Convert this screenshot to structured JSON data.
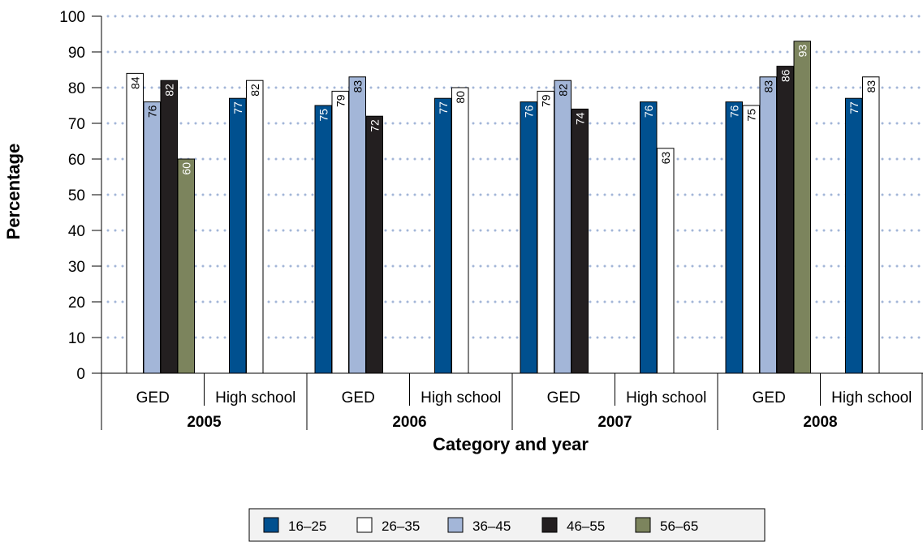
{
  "chart_data": {
    "type": "bar",
    "title": "",
    "xlabel": "Category and year",
    "ylabel": "Percentage",
    "ylim": [
      0,
      100
    ],
    "yticks": [
      "0",
      "10",
      "20",
      "30",
      "40",
      "50",
      "60",
      "70",
      "80",
      "90",
      "100"
    ],
    "grid": "horizontal dotted",
    "legend_position": "bottom",
    "groups": [
      {
        "year": "2005",
        "categories": [
          "GED",
          "High school"
        ]
      },
      {
        "year": "2006",
        "categories": [
          "GED",
          "High school"
        ]
      },
      {
        "year": "2007",
        "categories": [
          "GED",
          "High school"
        ]
      },
      {
        "year": "2008",
        "categories": [
          "GED",
          "High school"
        ]
      }
    ],
    "categories": [
      "GED",
      "High school",
      "GED",
      "High school",
      "GED",
      "High school",
      "GED",
      "High school"
    ],
    "series": [
      {
        "name": "16–25",
        "color": "#00508f",
        "label_color": "#ffffff",
        "values": [
          null,
          77,
          75,
          77,
          76,
          76,
          76,
          77
        ]
      },
      {
        "name": "26–35",
        "color": "#ffffff",
        "label_color": "#000000",
        "values": [
          84,
          82,
          79,
          80,
          79,
          63,
          75,
          83
        ]
      },
      {
        "name": "36–45",
        "color": "#a3b6d8",
        "label_color": "#000000",
        "values": [
          76,
          null,
          83,
          null,
          82,
          null,
          83,
          null
        ]
      },
      {
        "name": "46–55",
        "color": "#231f20",
        "label_color": "#ffffff",
        "values": [
          82,
          null,
          72,
          null,
          74,
          null,
          86,
          null
        ]
      },
      {
        "name": "56–65",
        "color": "#7c845d",
        "label_color": "#ffffff",
        "values": [
          60,
          null,
          null,
          null,
          null,
          null,
          93,
          null
        ]
      }
    ]
  }
}
